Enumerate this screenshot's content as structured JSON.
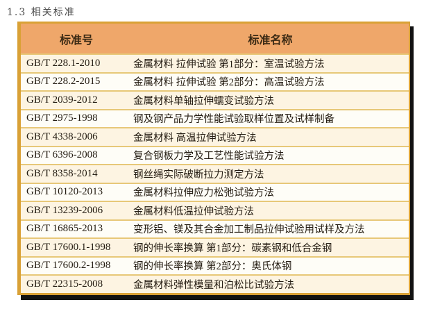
{
  "page": {
    "title": "1.3 相关标准"
  },
  "table": {
    "headers": [
      "标准号",
      "标准名称"
    ],
    "rows": [
      {
        "code": "GB/T 228.1-2010",
        "name": "金属材料 拉伸试验 第1部分：室温试验方法"
      },
      {
        "code": "GB/T 228.2-2015",
        "name": "金属材料 拉伸试验 第2部分：高温试验方法"
      },
      {
        "code": "GB/T 2039-2012",
        "name": "金属材料单轴拉伸蠕变试验方法"
      },
      {
        "code": "GB/T 2975-1998",
        "name": "钢及钢产品力学性能试验取样位置及试样制备"
      },
      {
        "code": "GB/T 4338-2006",
        "name": "金属材料 高温拉伸试验方法"
      },
      {
        "code": "GB/T 6396-2008",
        "name": "复合钢板力学及工艺性能试验方法"
      },
      {
        "code": "GB/T 8358-2014",
        "name": "钢丝绳实际破断拉力测定方法"
      },
      {
        "code": "GB/T 10120-2013",
        "name": "金属材料拉伸应力松弛试验方法"
      },
      {
        "code": "GB/T 13239-2006",
        "name": "金属材料低温拉伸试验方法"
      },
      {
        "code": "GB/T 16865-2013",
        "name": "变形铝、镁及其合金加工制品拉伸试验用试样及方法"
      },
      {
        "code": "GB/T 17600.1-1998",
        "name": "钢的伸长率换算 第1部分：碳素钢和低合金钢"
      },
      {
        "code": "GB/T 17600.2-1998",
        "name": "钢的伸长率换算 第2部分：奥氏体钢"
      },
      {
        "code": "GB/T 22315-2008",
        "name": "金属材料弹性模量和泊松比试验方法"
      }
    ]
  },
  "colors": {
    "header_bg": "#efa76a",
    "border_gold": "#d9a136",
    "separator_gold": "#e7c878",
    "row_cream": "#fdf4e2",
    "row_white": "#fefdf7",
    "text_dark": "#241c12",
    "shadow": "#121212"
  }
}
